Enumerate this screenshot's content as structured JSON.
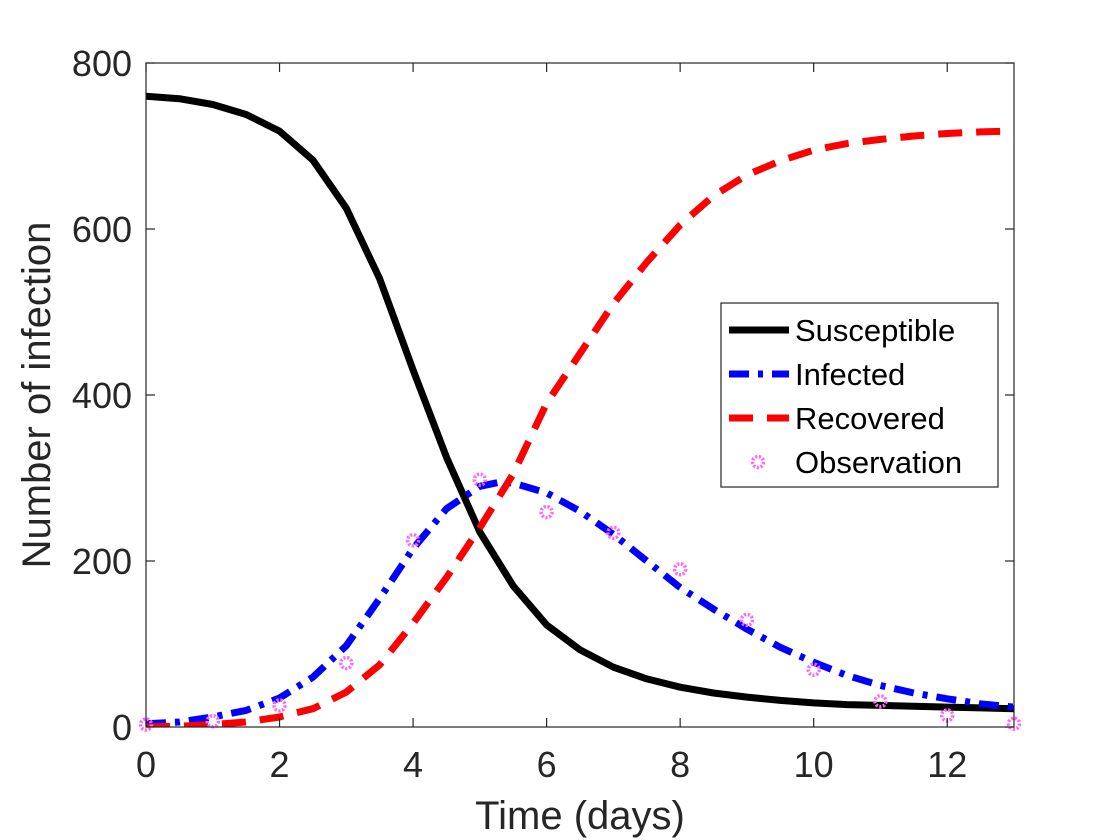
{
  "chart_data": {
    "type": "line",
    "xlabel": "Time (days)",
    "ylabel": "Number of infection",
    "xlim": [
      0,
      13
    ],
    "ylim": [
      0,
      800
    ],
    "xticks": [
      "0",
      "2",
      "4",
      "6",
      "8",
      "10",
      "12"
    ],
    "yticks": [
      "0",
      "200",
      "400",
      "600",
      "800"
    ],
    "grid": false,
    "legend_position": "right",
    "series": [
      {
        "name": "Susceptible",
        "style": "solid",
        "color": "#000000",
        "x": [
          0,
          0.5,
          1,
          1.5,
          2,
          2.5,
          3,
          3.5,
          4,
          4.5,
          5,
          5.5,
          6,
          6.5,
          7,
          7.5,
          8,
          8.5,
          9,
          9.5,
          10,
          10.5,
          11,
          11.5,
          12,
          12.5,
          13
        ],
        "y": [
          760,
          757,
          750,
          738,
          718,
          683,
          625,
          540,
          430,
          325,
          235,
          170,
          123,
          93,
          72,
          58,
          48,
          41,
          36,
          32,
          29,
          27,
          26,
          25,
          24,
          23,
          22
        ]
      },
      {
        "name": "Infected",
        "style": "dashdot",
        "color": "#0000ff",
        "x": [
          0,
          0.5,
          1,
          1.5,
          2,
          2.5,
          3,
          3.5,
          4,
          4.5,
          5,
          5.3,
          5.5,
          6,
          6.5,
          7,
          7.5,
          8,
          8.5,
          9,
          9.5,
          10,
          10.5,
          11,
          11.5,
          12,
          12.5,
          13
        ],
        "y": [
          4,
          6,
          12,
          20,
          35,
          60,
          98,
          155,
          215,
          263,
          290,
          295,
          294,
          282,
          260,
          232,
          200,
          168,
          142,
          118,
          96,
          78,
          62,
          50,
          41,
          34,
          28,
          24
        ]
      },
      {
        "name": "Recovered",
        "style": "dashed",
        "color": "#ff0000",
        "x": [
          0,
          0.5,
          1,
          1.5,
          2,
          2.5,
          3,
          3.5,
          4,
          4.5,
          5,
          5.5,
          6,
          6.5,
          7,
          7.5,
          8,
          8.5,
          9,
          9.5,
          10,
          10.5,
          11,
          11.5,
          12,
          12.5,
          13
        ],
        "y": [
          0,
          1,
          3,
          6,
          12,
          22,
          42,
          75,
          125,
          180,
          240,
          305,
          390,
          450,
          510,
          560,
          605,
          640,
          665,
          682,
          695,
          703,
          708,
          712,
          715,
          717,
          718
        ]
      },
      {
        "name": "Observation",
        "style": "markers",
        "color": "#ff66ff",
        "x": [
          0,
          1,
          2,
          3,
          4,
          5,
          6,
          7,
          8,
          9,
          10,
          11,
          12,
          13
        ],
        "y": [
          3,
          7,
          26,
          77,
          225,
          298,
          259,
          234,
          190,
          129,
          69,
          31,
          14,
          4
        ]
      }
    ]
  }
}
